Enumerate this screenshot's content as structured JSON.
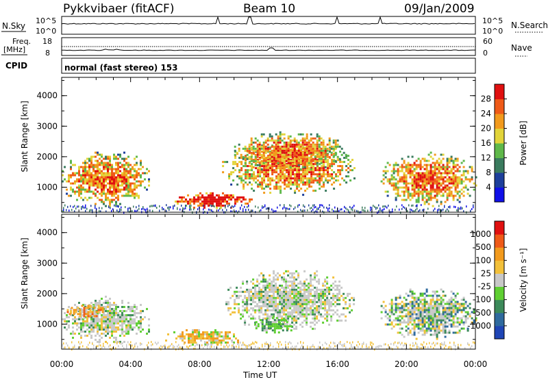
{
  "header": {
    "station": "Pykkvibaer (fitACF)",
    "beam": "Beam 10",
    "date": "09/Jan/2009"
  },
  "strips": {
    "nsky": {
      "label": "N.Sky",
      "right_label": "N.Search",
      "ticks_left": [
        "10^5",
        "10^0"
      ],
      "ticks_right": [
        "10^5",
        "10^0"
      ]
    },
    "freq": {
      "label": "Freq.",
      "unit": "[MHz]",
      "right_label": "Nave",
      "ticks_left": [
        "18",
        "8"
      ],
      "ticks_right": [
        "60",
        "0"
      ]
    },
    "cpid": {
      "label": "CPID",
      "text": "normal (fast stereo) 153"
    }
  },
  "x_axis": {
    "label": "Time UT",
    "ticks": [
      "00:00",
      "04:00",
      "08:00",
      "12:00",
      "16:00",
      "20:00",
      "00:00"
    ]
  },
  "chart_data": [
    {
      "type": "heatmap",
      "name": "power",
      "ylabel": "Slant Range [km]",
      "y_ticks": [
        1000,
        2000,
        3000,
        4000
      ],
      "ylim": [
        180,
        4600
      ],
      "xlim": [
        0,
        24
      ],
      "colorbar": {
        "label": "Power [dB]",
        "ticks": [
          "4",
          "8",
          "12",
          "16",
          "20",
          "24",
          "28"
        ],
        "colors": [
          "#1010e8",
          "#1d3f9b",
          "#3a7b5e",
          "#5fb84a",
          "#e2d43a",
          "#f29a1d",
          "#ef5a18",
          "#e01010"
        ]
      },
      "echo_regions": [
        {
          "t0": 0.0,
          "t1": 5.1,
          "r0": 300,
          "r1": 2300,
          "level": "mixed-high"
        },
        {
          "t0": 6.2,
          "t1": 11.0,
          "r0": 300,
          "r1": 900,
          "level": "high"
        },
        {
          "t0": 9.3,
          "t1": 17.0,
          "r0": 700,
          "r1": 2600,
          "level": "mixed-high"
        },
        {
          "t0": 10.0,
          "t1": 16.5,
          "r0": 1500,
          "r1": 2900,
          "level": "mixed"
        },
        {
          "t0": 18.5,
          "t1": 24.0,
          "r0": 300,
          "r1": 2300,
          "level": "mixed-high"
        }
      ]
    },
    {
      "type": "heatmap",
      "name": "velocity",
      "ylabel": "Slant Range [km]",
      "y_ticks": [
        1000,
        2000,
        3000,
        4000
      ],
      "ylim": [
        180,
        4600
      ],
      "xlim": [
        0,
        24
      ],
      "colorbar": {
        "label": "Velocity [m s^-1]",
        "ticks": [
          "1000",
          "500",
          "100",
          "25",
          "-25",
          "-100",
          "-500",
          "-1000"
        ],
        "colors": [
          "#1f45b5",
          "#2f6a9e",
          "#3c8a5a",
          "#5fcf32",
          "#c8c8c8",
          "#f2c03a",
          "#f29a1d",
          "#ef5a18",
          "#e01010"
        ]
      },
      "echo_regions": [
        {
          "t0": 0.0,
          "t1": 5.1,
          "r0": 300,
          "r1": 2000,
          "level": "gray"
        },
        {
          "t0": 0.3,
          "t1": 2.5,
          "r0": 1200,
          "r1": 1700,
          "level": "orange"
        },
        {
          "t0": 6.0,
          "t1": 10.5,
          "r0": 300,
          "r1": 900,
          "level": "yellow-orange"
        },
        {
          "t0": 9.5,
          "t1": 17.0,
          "r0": 700,
          "r1": 2900,
          "level": "gray"
        },
        {
          "t0": 11.0,
          "t1": 13.5,
          "r0": 700,
          "r1": 1300,
          "level": "green"
        },
        {
          "t0": 18.5,
          "t1": 24.0,
          "r0": 400,
          "r1": 2300,
          "level": "gray-green"
        }
      ]
    }
  ]
}
